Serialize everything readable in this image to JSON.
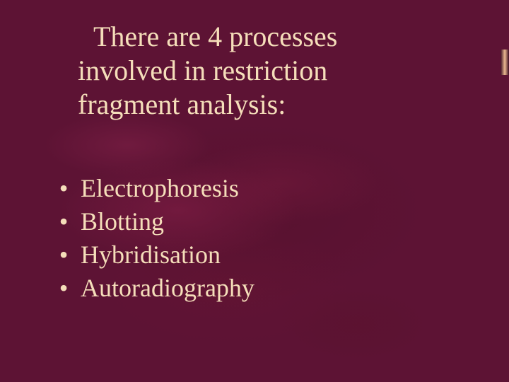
{
  "slide": {
    "background_color": "#5d1334",
    "text_color": "#f5deba",
    "font_family": "Georgia, Times New Roman, serif",
    "title_fontsize": 40,
    "bullet_fontsize": 36,
    "title_lines": [
      "There are 4 processes",
      "involved in restriction",
      "fragment analysis:"
    ],
    "bullets": [
      "Electrophoresis",
      "Blotting",
      "Hybridisation",
      "Autoradiography"
    ],
    "bullet_char": "•"
  }
}
